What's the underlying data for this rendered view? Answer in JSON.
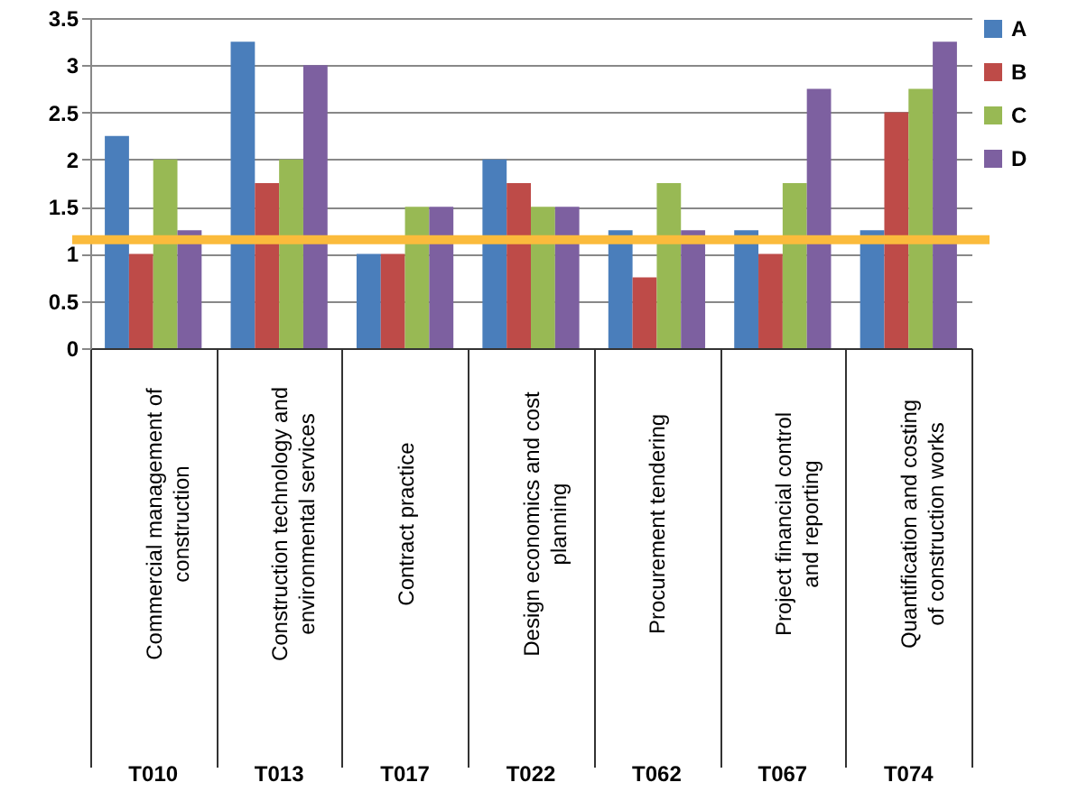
{
  "chart_data": {
    "type": "bar",
    "categories": [
      "Commercial management of construction",
      "Construction technology and environmental services",
      "Contract practice",
      "Design economics and cost planning",
      "Procurement tendering",
      "Project financial control and reporting",
      "Quantification and costing of construction works"
    ],
    "series": [
      {
        "name": "A",
        "color": "#4a7ebb",
        "values": [
          2.25,
          3.25,
          1,
          2,
          1.25,
          1.25,
          1.25
        ]
      },
      {
        "name": "B",
        "color": "#be4b48",
        "values": [
          1,
          1.75,
          1,
          1.75,
          0.75,
          1,
          2.5
        ]
      },
      {
        "name": "C",
        "color": "#98b954",
        "values": [
          2,
          2,
          1.5,
          1.5,
          1.75,
          1.75,
          2.75
        ]
      },
      {
        "name": "D",
        "color": "#7d60a0",
        "values": [
          1.25,
          3,
          1.5,
          1.5,
          1.25,
          2.75,
          3.25
        ]
      }
    ],
    "ylim": [
      0,
      3.5
    ],
    "yticks": [
      0,
      0.5,
      1,
      1.5,
      2,
      2.5,
      3,
      3.5
    ],
    "grid": "y",
    "legend": "right",
    "ref_lines": [
      {
        "axis": "y",
        "value": 1.15,
        "color": "#fbbb3c"
      }
    ],
    "annotations": [
      "T010",
      "T013",
      "T017",
      "T022",
      "T062",
      "T067",
      "T074"
    ]
  }
}
